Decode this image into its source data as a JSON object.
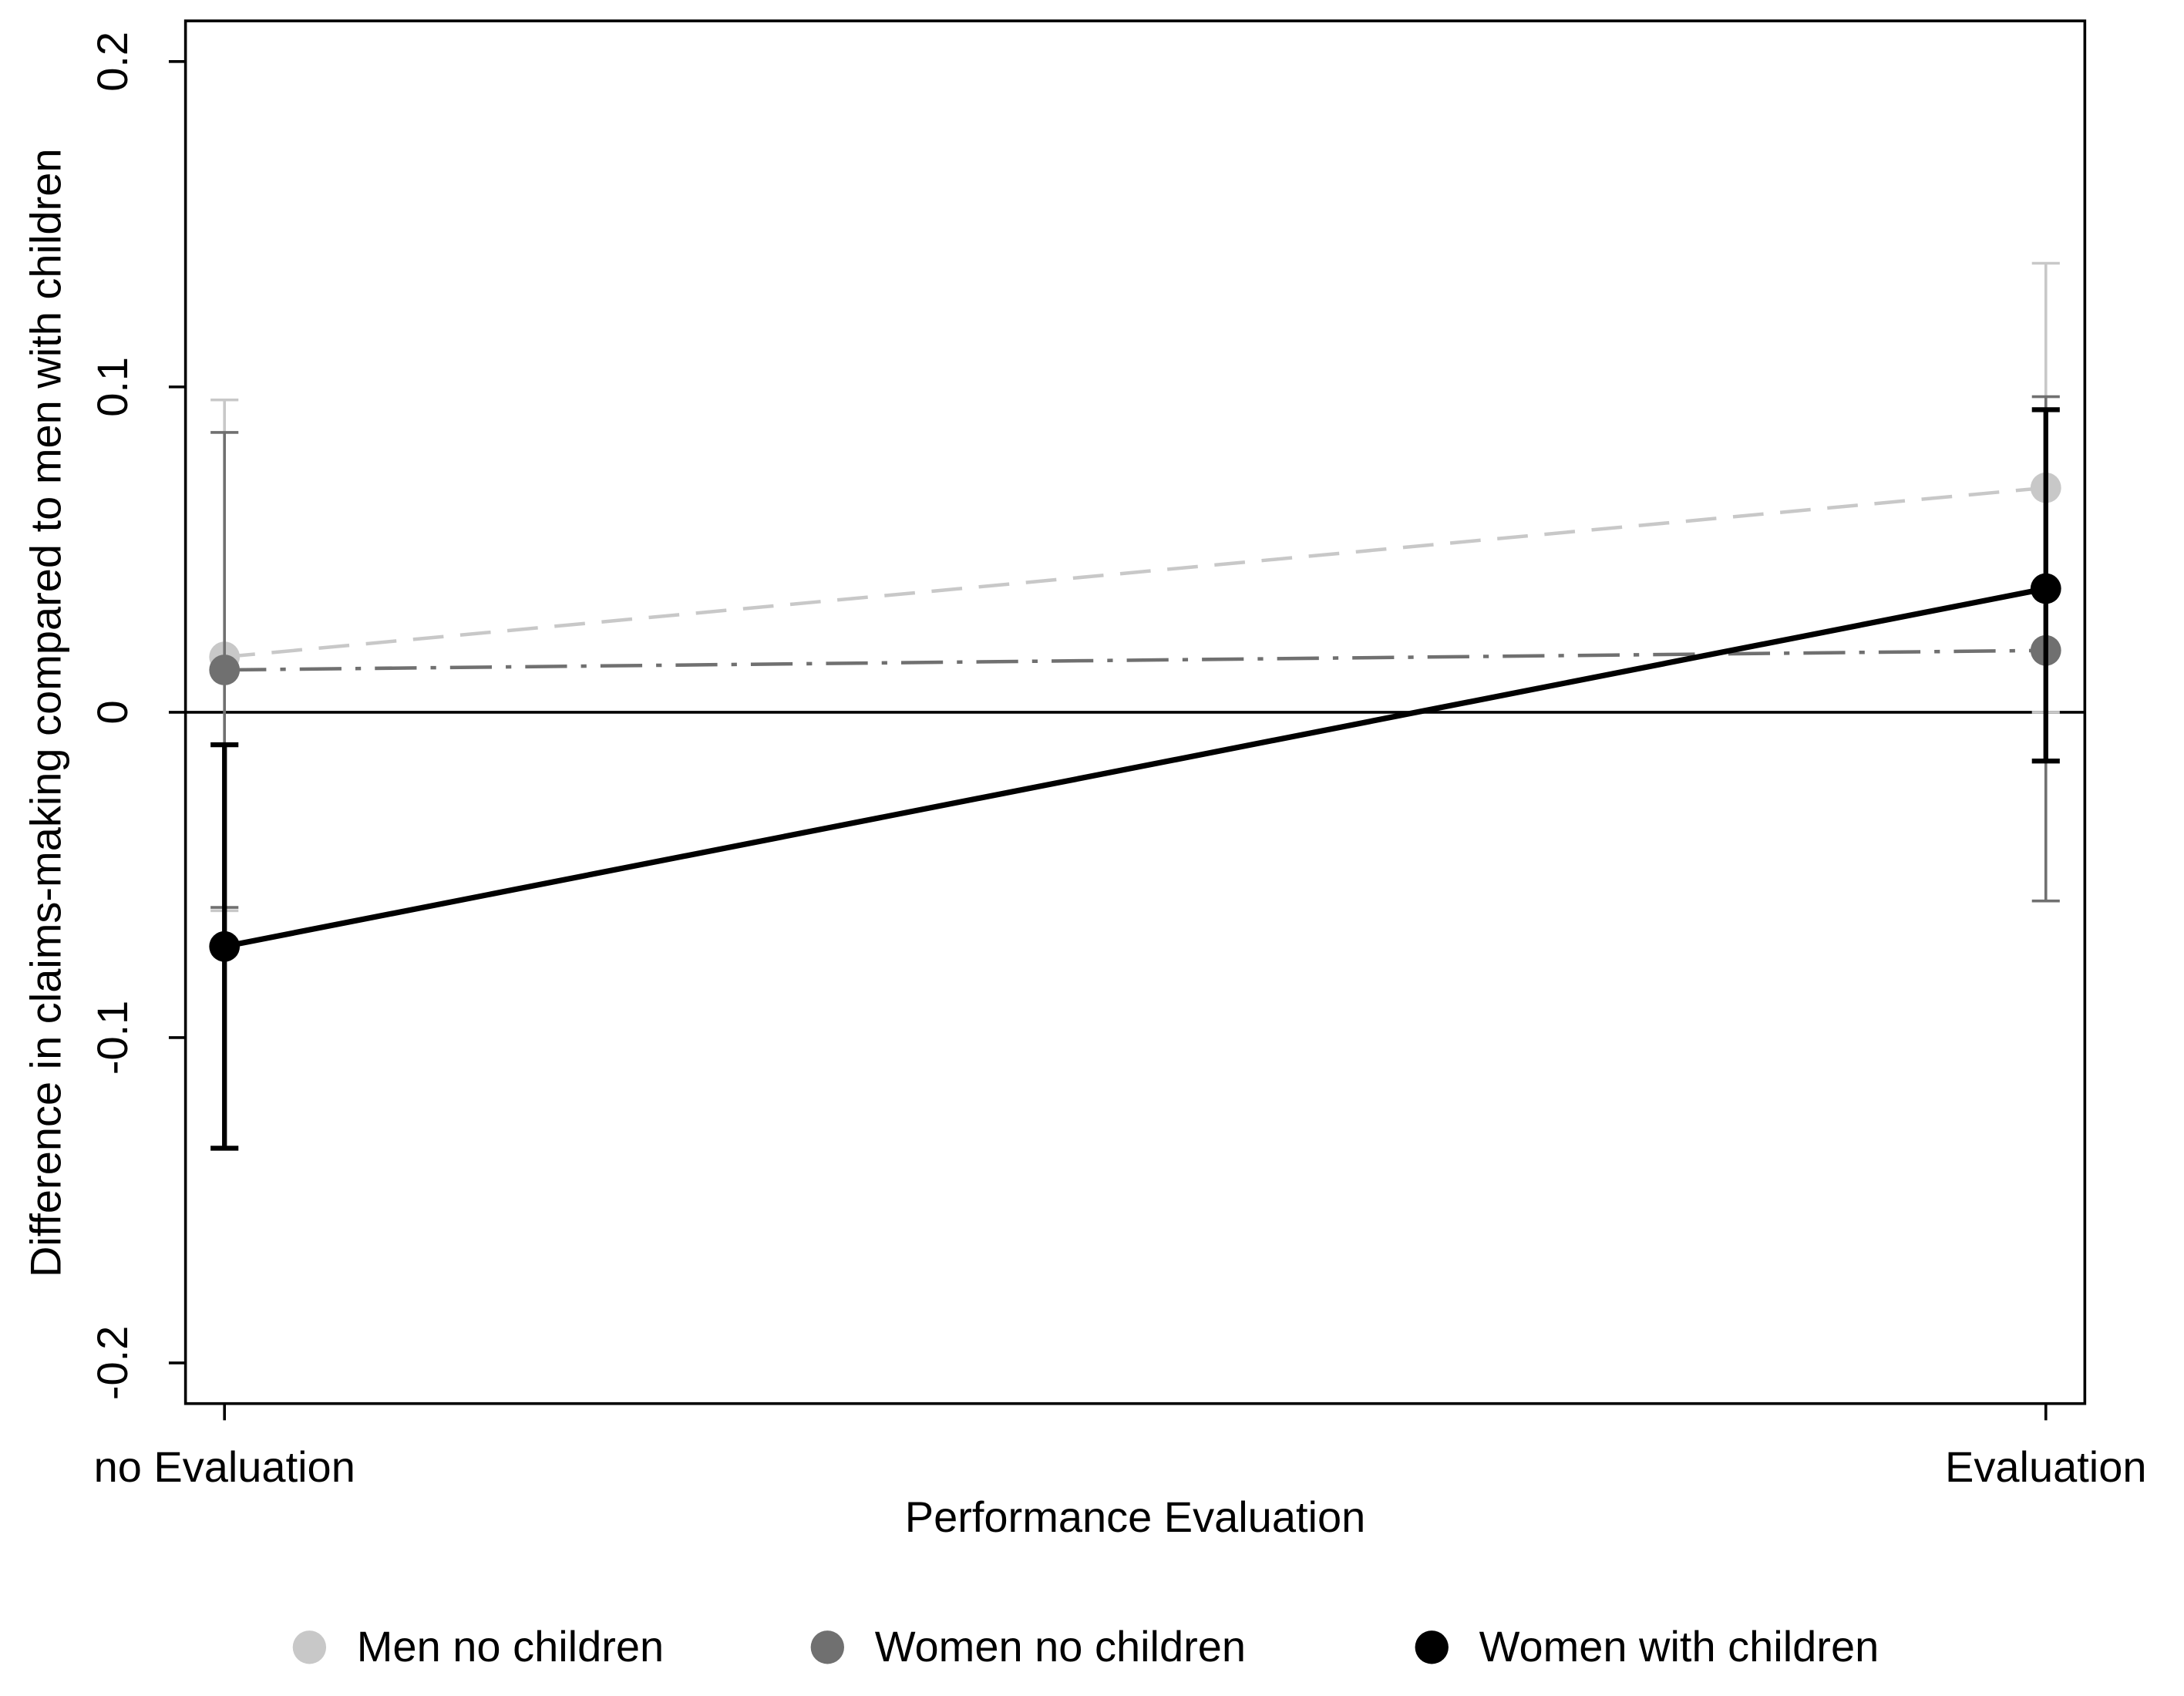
{
  "chart_data": {
    "type": "line",
    "x_label": "Performance Evaluation",
    "y_label": "Difference in claims-making compared to men with children",
    "categories": [
      "no Evaluation",
      "Evaluation"
    ],
    "ylim": [
      -0.2125,
      0.2125
    ],
    "yticks": [
      -0.2,
      -0.1,
      0,
      0.1,
      0.2
    ],
    "reference_line": 0,
    "legend": "bottom",
    "series": [
      {
        "name": "Men no children",
        "color": "#c8c8c8",
        "line_style": "dashed",
        "values": [
          0.017,
          0.069
        ],
        "low": [
          -0.061,
          0.0
        ],
        "high": [
          0.096,
          0.138
        ]
      },
      {
        "name": "Women no children",
        "color": "#707070",
        "line_style": "dashdot",
        "values": [
          0.013,
          0.019
        ],
        "low": [
          -0.06,
          -0.058
        ],
        "high": [
          0.086,
          0.097
        ]
      },
      {
        "name": "Women with children",
        "color": "#000000",
        "line_style": "solid",
        "values": [
          -0.072,
          0.038
        ],
        "low": [
          -0.134,
          -0.015
        ],
        "high": [
          -0.01,
          0.093
        ]
      }
    ]
  }
}
